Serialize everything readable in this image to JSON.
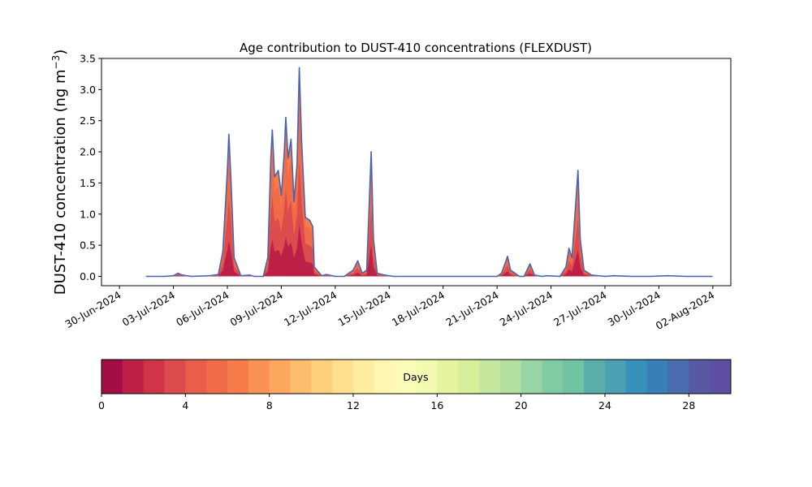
{
  "chart_data": {
    "type": "area",
    "title": "Age contribution to DUST-410 concentrations (FLEXDUST)",
    "ylabel": "DUST-410 concentration (ng m",
    "ylabel_superscript": "−3",
    "ylabel_close": ")",
    "ylim": [
      -0.15,
      3.5
    ],
    "yticks": [
      0.0,
      0.5,
      1.0,
      1.5,
      2.0,
      2.5,
      3.0,
      3.5
    ],
    "ytick_labels": [
      "0.0",
      "0.5",
      "1.0",
      "1.5",
      "2.0",
      "2.5",
      "3.0",
      "3.5"
    ],
    "xlim": [
      "2024-06-29",
      "2024-08-03"
    ],
    "xticks": [
      "2024-06-30",
      "2024-07-03",
      "2024-07-06",
      "2024-07-09",
      "2024-07-12",
      "2024-07-15",
      "2024-07-18",
      "2024-07-21",
      "2024-07-24",
      "2024-07-27",
      "2024-07-30",
      "2024-08-02"
    ],
    "xtick_labels": [
      "30-Jun-2024",
      "03-Jul-2024",
      "06-Jul-2024",
      "09-Jul-2024",
      "12-Jul-2024",
      "15-Jul-2024",
      "18-Jul-2024",
      "21-Jul-2024",
      "24-Jul-2024",
      "27-Jul-2024",
      "30-Jul-2024",
      "02-Aug-2024"
    ],
    "series": [
      {
        "total_line_color": "#4b63ad",
        "points": [
          [
            "2024-07-01 12:00",
            0.0
          ],
          [
            "2024-07-02 12:00",
            0.0
          ],
          [
            "2024-07-03 00:00",
            0.01
          ],
          [
            "2024-07-03 06:00",
            0.05
          ],
          [
            "2024-07-03 12:00",
            0.02
          ],
          [
            "2024-07-04 00:00",
            0.0
          ],
          [
            "2024-07-05 00:00",
            0.01
          ],
          [
            "2024-07-05 12:00",
            0.03
          ],
          [
            "2024-07-05 18:00",
            0.4
          ],
          [
            "2024-07-06 00:00",
            1.7
          ],
          [
            "2024-07-06 02:00",
            2.28
          ],
          [
            "2024-07-06 05:00",
            1.5
          ],
          [
            "2024-07-06 09:00",
            0.3
          ],
          [
            "2024-07-06 18:00",
            0.01
          ],
          [
            "2024-07-07 06:00",
            0.02
          ],
          [
            "2024-07-07 12:00",
            0.0
          ],
          [
            "2024-07-08 00:00",
            0.0
          ],
          [
            "2024-07-08 06:00",
            0.3
          ],
          [
            "2024-07-08 10:00",
            1.9
          ],
          [
            "2024-07-08 12:00",
            2.35
          ],
          [
            "2024-07-08 15:00",
            1.6
          ],
          [
            "2024-07-08 20:00",
            1.7
          ],
          [
            "2024-07-09 00:00",
            1.3
          ],
          [
            "2024-07-09 04:00",
            2.0
          ],
          [
            "2024-07-09 06:00",
            2.55
          ],
          [
            "2024-07-09 09:00",
            1.9
          ],
          [
            "2024-07-09 13:00",
            2.2
          ],
          [
            "2024-07-09 17:00",
            1.2
          ],
          [
            "2024-07-09 21:00",
            1.8
          ],
          [
            "2024-07-10 00:00",
            3.35
          ],
          [
            "2024-07-10 03:00",
            2.2
          ],
          [
            "2024-07-10 08:00",
            0.95
          ],
          [
            "2024-07-10 14:00",
            0.9
          ],
          [
            "2024-07-10 18:00",
            0.8
          ],
          [
            "2024-07-10 20:00",
            0.15
          ],
          [
            "2024-07-11 06:00",
            0.01
          ],
          [
            "2024-07-11 12:00",
            0.03
          ],
          [
            "2024-07-12 00:00",
            0.0
          ],
          [
            "2024-07-12 12:00",
            0.0
          ],
          [
            "2024-07-13 00:00",
            0.1
          ],
          [
            "2024-07-13 06:00",
            0.25
          ],
          [
            "2024-07-13 12:00",
            0.05
          ],
          [
            "2024-07-13 18:00",
            0.1
          ],
          [
            "2024-07-14 00:00",
            2.0
          ],
          [
            "2024-07-14 03:00",
            0.6
          ],
          [
            "2024-07-14 08:00",
            0.05
          ],
          [
            "2024-07-14 18:00",
            0.02
          ],
          [
            "2024-07-15 06:00",
            0.0
          ],
          [
            "2024-07-21 00:00",
            0.0
          ],
          [
            "2024-07-21 06:00",
            0.05
          ],
          [
            "2024-07-21 14:00",
            0.32
          ],
          [
            "2024-07-21 18:00",
            0.1
          ],
          [
            "2024-07-22 06:00",
            0.0
          ],
          [
            "2024-07-22 12:00",
            0.0
          ],
          [
            "2024-07-22 20:00",
            0.2
          ],
          [
            "2024-07-23 02:00",
            0.02
          ],
          [
            "2024-07-23 12:00",
            0.0
          ],
          [
            "2024-07-23 18:00",
            0.01
          ],
          [
            "2024-07-24 12:00",
            0.0
          ],
          [
            "2024-07-24 20:00",
            0.15
          ],
          [
            "2024-07-25 00:00",
            0.45
          ],
          [
            "2024-07-25 04:00",
            0.3
          ],
          [
            "2024-07-25 08:00",
            1.0
          ],
          [
            "2024-07-25 12:00",
            1.7
          ],
          [
            "2024-07-25 15:00",
            0.6
          ],
          [
            "2024-07-25 20:00",
            0.1
          ],
          [
            "2024-07-26 06:00",
            0.02
          ],
          [
            "2024-07-27 00:00",
            0.0
          ],
          [
            "2024-07-27 12:00",
            0.01
          ],
          [
            "2024-07-28 12:00",
            0.0
          ],
          [
            "2024-07-29 12:00",
            0.0
          ],
          [
            "2024-07-30 12:00",
            0.01
          ],
          [
            "2024-07-31 12:00",
            0.0
          ],
          [
            "2024-08-01 12:00",
            0.0
          ],
          [
            "2024-08-01 23:00",
            0.0
          ]
        ]
      }
    ],
    "colorbar": {
      "label": "Days",
      "min": 0,
      "max": 30,
      "ticks": [
        0,
        4,
        8,
        12,
        16,
        20,
        24,
        28
      ],
      "tick_labels": [
        "0",
        "4",
        "8",
        "12",
        "16",
        "20",
        "24",
        "28"
      ],
      "colors": [
        "#a50d45",
        "#bc2047",
        "#cf3449",
        "#dd4c4c",
        "#e85e4a",
        "#f06b47",
        "#f67c4b",
        "#f99254",
        "#fca85f",
        "#fdbd6f",
        "#fed07e",
        "#fee08f",
        "#feec9f",
        "#fff8b2",
        "#fbfdb9",
        "#f2fab0",
        "#e5f49f",
        "#d7ef9b",
        "#c5e89e",
        "#b3e09f",
        "#99d5a4",
        "#80cba4",
        "#70c4a4",
        "#5caea8",
        "#4ba1b1",
        "#3891bb",
        "#3a7eb8",
        "#4a6bae",
        "#5958a4",
        "#5e4fa2"
      ],
      "colormap_name": "Spectral"
    },
    "grid": false,
    "legend": "none"
  }
}
